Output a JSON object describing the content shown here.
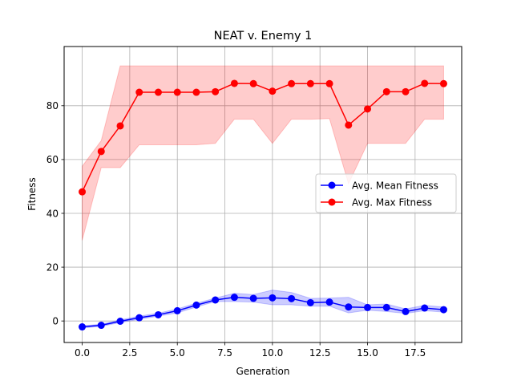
{
  "chart_data": {
    "type": "line",
    "title": "NEAT v. Enemy 1",
    "xlabel": "Generation",
    "ylabel": "Fitness",
    "xlim": [
      -0.95,
      19.95
    ],
    "ylim": [
      -8,
      102
    ],
    "xticks": [
      0,
      2.5,
      5,
      7.5,
      10,
      12.5,
      15,
      17.5
    ],
    "xtick_labels": [
      "0.0",
      "2.5",
      "5.0",
      "7.5",
      "10.0",
      "12.5",
      "15.0",
      "17.5"
    ],
    "yticks": [
      0,
      20,
      40,
      60,
      80
    ],
    "ytick_labels": [
      "0",
      "20",
      "40",
      "60",
      "80"
    ],
    "grid": true,
    "legend_position": "center-right",
    "x": [
      0,
      1,
      2,
      3,
      4,
      5,
      6,
      7,
      8,
      9,
      10,
      11,
      12,
      13,
      14,
      15,
      16,
      17,
      18,
      19
    ],
    "series": [
      {
        "name": "Avg. Mean Fitness",
        "color": "#0000ff",
        "fill_color": "#0000ff",
        "values": [
          -2.2,
          -1.6,
          -0.1,
          1.2,
          2.3,
          3.8,
          5.9,
          7.8,
          8.8,
          8.4,
          8.6,
          8.3,
          6.8,
          7.0,
          5.2,
          5.0,
          5.0,
          3.5,
          4.8,
          4.2
        ],
        "lower": [
          -2.6,
          -2.0,
          -0.6,
          0.6,
          1.8,
          3.0,
          5.2,
          7.2,
          7.2,
          7.0,
          6.0,
          6.0,
          5.5,
          5.5,
          3.0,
          4.0,
          3.5,
          2.8,
          3.8,
          3.3
        ],
        "upper": [
          -1.8,
          -1.2,
          0.4,
          1.8,
          2.9,
          4.5,
          6.6,
          8.5,
          10.3,
          9.8,
          11.5,
          10.6,
          8.4,
          8.5,
          8.8,
          6.0,
          6.3,
          4.5,
          5.8,
          5.2
        ]
      },
      {
        "name": "Avg. Max Fitness",
        "color": "#ff0000",
        "fill_color": "#ff0000",
        "values": [
          48.0,
          63.0,
          72.5,
          85.0,
          85.0,
          85.0,
          85.0,
          85.2,
          88.3,
          88.2,
          85.4,
          88.2,
          88.2,
          88.2,
          72.8,
          78.8,
          85.2,
          85.2,
          88.3,
          88.2
        ],
        "lower": [
          30.0,
          57.0,
          57.0,
          65.5,
          65.5,
          65.5,
          65.5,
          66.0,
          75.0,
          75.0,
          66.0,
          75.0,
          75.0,
          75.2,
          51.0,
          66.0,
          66.0,
          66.0,
          75.0,
          75.0
        ],
        "upper": [
          57.5,
          67.0,
          94.8,
          94.8,
          94.8,
          94.8,
          94.8,
          94.8,
          94.8,
          94.8,
          94.8,
          94.8,
          94.8,
          94.8,
          94.8,
          94.8,
          94.8,
          94.8,
          94.8,
          94.8
        ]
      }
    ]
  }
}
